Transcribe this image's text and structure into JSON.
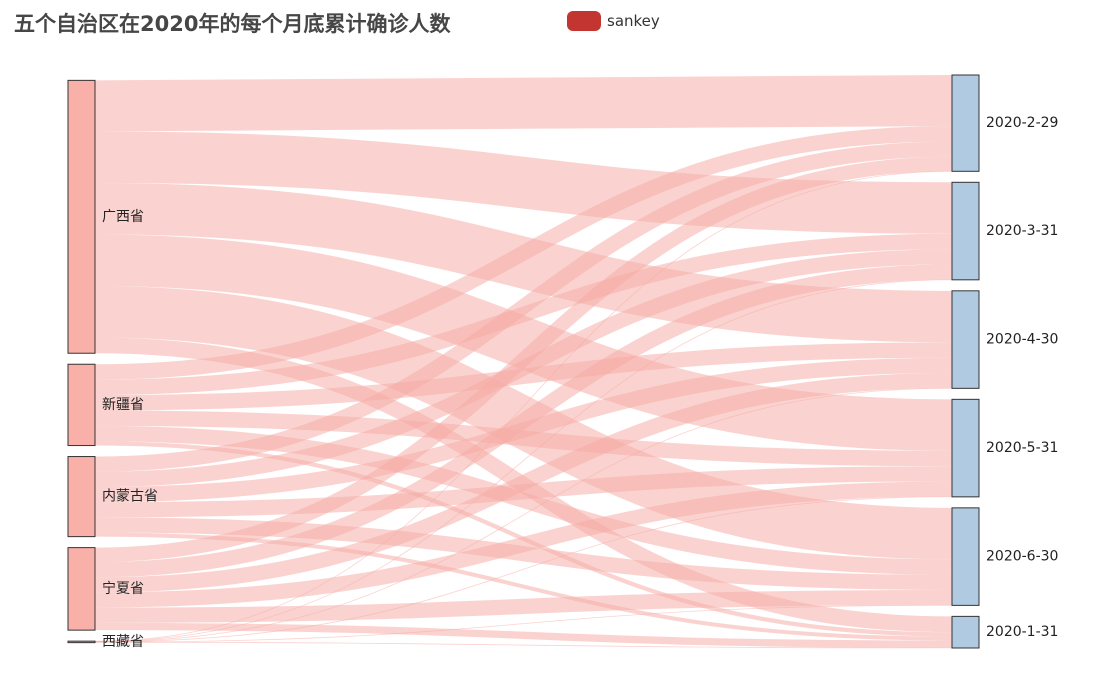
{
  "title": "五个自治区在2020年的每个月底累计确诊人数",
  "legend": {
    "label": "sankey",
    "color": "#c23531"
  },
  "colors": {
    "link": "#f5aba4",
    "source_node": "#f9b0a8",
    "target_node": "#b0cbe1",
    "node_border": "#333333"
  },
  "chart_data": {
    "type": "sankey",
    "series_name": "sankey",
    "sources": [
      "广西省",
      "新疆省",
      "内蒙古省",
      "宁夏省",
      "西藏省"
    ],
    "targets": [
      "2020-2-29",
      "2020-3-31",
      "2020-4-30",
      "2020-5-31",
      "2020-6-30",
      "2020-1-31"
    ],
    "links": [
      {
        "source": "广西省",
        "target": "2020-2-29",
        "value": 252
      },
      {
        "source": "广西省",
        "target": "2020-3-31",
        "value": 254
      },
      {
        "source": "广西省",
        "target": "2020-4-30",
        "value": 254
      },
      {
        "source": "广西省",
        "target": "2020-5-31",
        "value": 254
      },
      {
        "source": "广西省",
        "target": "2020-6-30",
        "value": 254
      },
      {
        "source": "广西省",
        "target": "2020-1-31",
        "value": 78
      },
      {
        "source": "新疆省",
        "target": "2020-2-29",
        "value": 76
      },
      {
        "source": "新疆省",
        "target": "2020-3-31",
        "value": 76
      },
      {
        "source": "新疆省",
        "target": "2020-4-30",
        "value": 76
      },
      {
        "source": "新疆省",
        "target": "2020-5-31",
        "value": 76
      },
      {
        "source": "新疆省",
        "target": "2020-6-30",
        "value": 76
      },
      {
        "source": "新疆省",
        "target": "2020-1-31",
        "value": 21
      },
      {
        "source": "内蒙古省",
        "target": "2020-2-29",
        "value": 75
      },
      {
        "source": "内蒙古省",
        "target": "2020-3-31",
        "value": 75
      },
      {
        "source": "内蒙古省",
        "target": "2020-4-30",
        "value": 75
      },
      {
        "source": "内蒙古省",
        "target": "2020-5-31",
        "value": 75
      },
      {
        "source": "内蒙古省",
        "target": "2020-6-30",
        "value": 75
      },
      {
        "source": "内蒙古省",
        "target": "2020-1-31",
        "value": 20
      },
      {
        "source": "宁夏省",
        "target": "2020-2-29",
        "value": 71
      },
      {
        "source": "宁夏省",
        "target": "2020-3-31",
        "value": 75
      },
      {
        "source": "宁夏省",
        "target": "2020-4-30",
        "value": 75
      },
      {
        "source": "宁夏省",
        "target": "2020-5-31",
        "value": 75
      },
      {
        "source": "宁夏省",
        "target": "2020-6-30",
        "value": 75
      },
      {
        "source": "宁夏省",
        "target": "2020-1-31",
        "value": 36
      },
      {
        "source": "西藏省",
        "target": "2020-2-29",
        "value": 1
      },
      {
        "source": "西藏省",
        "target": "2020-3-31",
        "value": 1
      },
      {
        "source": "西藏省",
        "target": "2020-4-30",
        "value": 1
      },
      {
        "source": "西藏省",
        "target": "2020-5-31",
        "value": 1
      },
      {
        "source": "西藏省",
        "target": "2020-6-30",
        "value": 1
      },
      {
        "source": "西藏省",
        "target": "2020-1-31",
        "value": 1
      }
    ]
  }
}
